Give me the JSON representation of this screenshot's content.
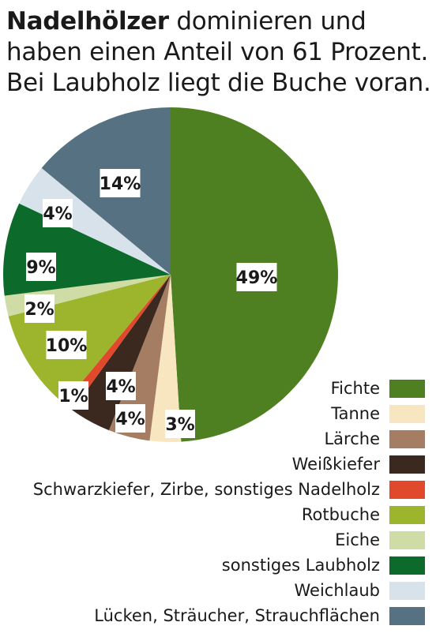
{
  "headline": {
    "lead": "Nadelhölzer",
    "rest": " dominieren und haben einen Anteil von 61 Prozent. Bei Laubholz liegt die Buche voran."
  },
  "chart_data": {
    "type": "pie",
    "title": "Nadelhölzer dominieren und haben einen Anteil von 61 Prozent. Bei Laubholz liegt die Buche voran.",
    "legend_position": "bottom-right",
    "slices": [
      {
        "label": "Fichte",
        "value": 49,
        "display": "49%",
        "color": "#4e8021"
      },
      {
        "label": "Tanne",
        "value": 3,
        "display": "3%",
        "color": "#f7e6c0"
      },
      {
        "label": "Lärche",
        "value": 4,
        "display": "4%",
        "color": "#a47d63"
      },
      {
        "label": "Weißkiefer",
        "value": 4,
        "display": "4%",
        "color": "#3b2920"
      },
      {
        "label": "Schwarzkiefer, Zirbe, sonstiges Nadelholz",
        "value": 1,
        "display": "1%",
        "color": "#e0492c"
      },
      {
        "label": "Rotbuche",
        "value": 10,
        "display": "10%",
        "color": "#9db52d"
      },
      {
        "label": "Eiche",
        "value": 2,
        "display": "2%",
        "color": "#cfdca6"
      },
      {
        "label": "sonstiges Laubholz",
        "value": 9,
        "display": "9%",
        "color": "#0c6b2b"
      },
      {
        "label": "Weichlaub",
        "value": 4,
        "display": "4%",
        "color": "#d8e2ea"
      },
      {
        "label": "Lücken, Sträucher, Strauchflächen",
        "value": 14,
        "display": "14%",
        "color": "#567282"
      }
    ]
  }
}
